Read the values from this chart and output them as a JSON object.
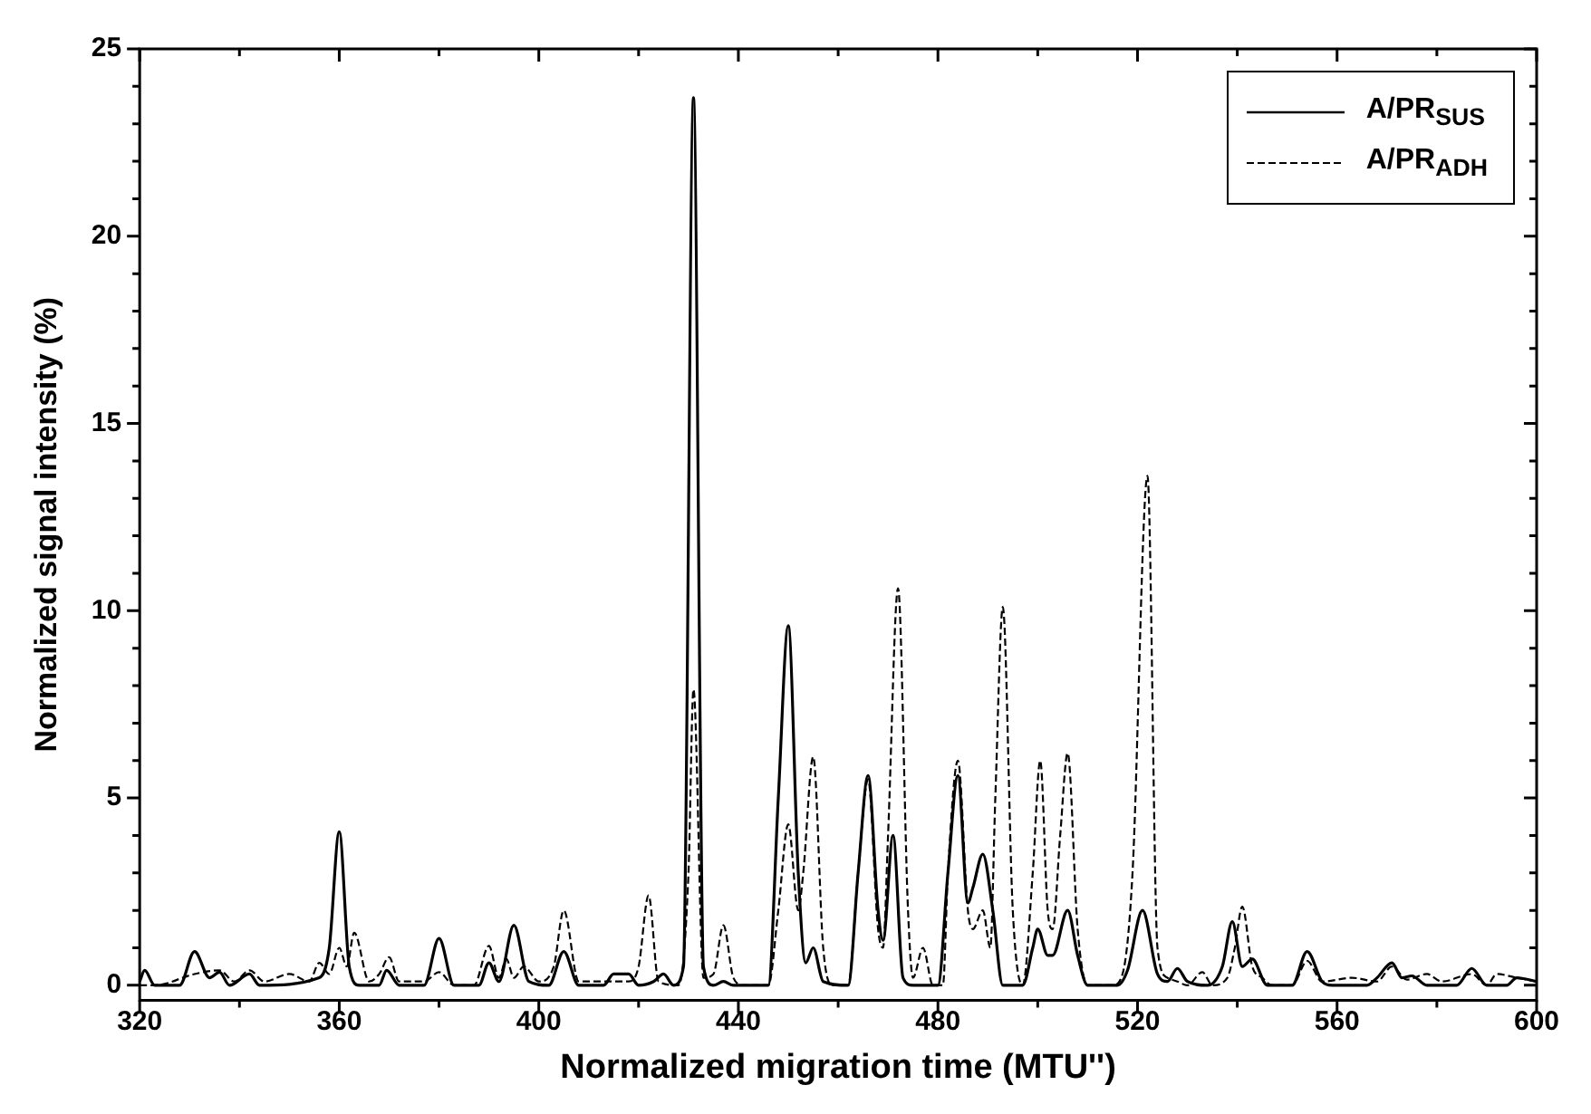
{
  "chart_data": {
    "type": "line",
    "xlabel": "Normalized migration time (MTU'')",
    "ylabel": "Normalized signal intensity (%)",
    "xlim": [
      320,
      600
    ],
    "ylim": [
      -0.4,
      25
    ],
    "xticks": [
      320,
      {
        "value": 340,
        "label": null
      },
      360,
      {
        "value": 380,
        "label": null
      },
      400,
      {
        "value": 420,
        "label": null
      },
      440,
      {
        "value": 460,
        "label": null
      },
      480,
      {
        "value": 500,
        "label": null
      },
      520,
      {
        "value": 540,
        "label": null
      },
      560,
      {
        "value": 580,
        "label": null
      },
      600
    ],
    "yticks": [
      0,
      {
        "value": 1,
        "label": null
      },
      {
        "value": 2,
        "label": null
      },
      {
        "value": 3,
        "label": null
      },
      {
        "value": 4,
        "label": null
      },
      5,
      {
        "value": 6,
        "label": null
      },
      {
        "value": 7,
        "label": null
      },
      {
        "value": 8,
        "label": null
      },
      {
        "value": 9,
        "label": null
      },
      10,
      {
        "value": 11,
        "label": null
      },
      {
        "value": 12,
        "label": null
      },
      {
        "value": 13,
        "label": null
      },
      {
        "value": 14,
        "label": null
      },
      15,
      {
        "value": 16,
        "label": null
      },
      {
        "value": 17,
        "label": null
      },
      {
        "value": 18,
        "label": null
      },
      {
        "value": 19,
        "label": null
      },
      20,
      {
        "value": 21,
        "label": null
      },
      {
        "value": 22,
        "label": null
      },
      {
        "value": 23,
        "label": null
      },
      {
        "value": 24,
        "label": null
      },
      25
    ],
    "grid": false,
    "legend": "top right",
    "marker": "none",
    "series": [
      {
        "name": "A/PR$_{SUS}$",
        "color": "#000000",
        "line_style": "solid",
        "x": [
          320,
          321,
          323,
          328,
          331,
          334,
          336,
          338,
          342,
          344,
          356,
          358,
          360,
          362,
          364,
          368,
          369.5,
          372,
          377,
          380,
          383,
          388,
          390,
          392,
          395,
          398,
          402,
          405,
          408,
          413,
          415,
          418,
          420,
          423,
          425,
          427,
          429,
          431,
          433,
          435,
          437,
          439,
          446,
          448,
          450,
          452,
          453.5,
          455,
          457,
          462,
          464,
          466,
          468,
          469,
          471,
          473,
          475,
          480,
          482,
          484,
          486,
          487,
          489,
          491,
          493,
          497,
          499,
          500,
          502,
          503,
          506,
          508,
          510,
          516,
          518,
          521,
          524,
          526,
          528,
          530,
          534,
          537,
          539,
          541,
          543,
          546,
          551,
          554,
          557,
          559,
          566,
          568,
          571,
          573,
          575,
          578,
          584,
          587,
          590,
          594,
          596,
          600
        ],
        "values": [
          0.1,
          0.4,
          0,
          0,
          0.9,
          0.2,
          0.35,
          0,
          0.3,
          0,
          0.2,
          1,
          4.1,
          0.5,
          0,
          0,
          0.4,
          0,
          0,
          1.25,
          0,
          0,
          0.6,
          0.1,
          1.6,
          0.1,
          0,
          0.9,
          0,
          0,
          0.3,
          0.3,
          0,
          0.1,
          0.3,
          0,
          0.5,
          23.7,
          0.5,
          0,
          0.1,
          0,
          0,
          5,
          9.6,
          3,
          0.6,
          1,
          0.1,
          0,
          3,
          5.6,
          2,
          1.2,
          4,
          0.2,
          0,
          0,
          3,
          5.6,
          2.2,
          2.6,
          3.5,
          2,
          0,
          0,
          1,
          1.5,
          0.8,
          0.8,
          2,
          0.8,
          0,
          0,
          0.4,
          2,
          0.3,
          0.1,
          0.45,
          0.1,
          0,
          0.5,
          1.7,
          0.5,
          0.7,
          0,
          0,
          0.9,
          0.1,
          0,
          0,
          0.2,
          0.6,
          0.2,
          0.25,
          0,
          0,
          0.45,
          0,
          0,
          0.2,
          0.1
        ]
      },
      {
        "name": "A/PR$_{ADH}$",
        "color": "#000000",
        "line_style": "dashed",
        "x": [
          320,
          323,
          331,
          336,
          339,
          342,
          345,
          350,
          354,
          356,
          358,
          360,
          361.5,
          363,
          366,
          368,
          370,
          372,
          377,
          380,
          383,
          387,
          390,
          392,
          393.5,
          395,
          397,
          400,
          403,
          405,
          408,
          414,
          418,
          420,
          422,
          424,
          428,
          430,
          431,
          433,
          435,
          437,
          439,
          441,
          446,
          448,
          450,
          452,
          453,
          455,
          457,
          459,
          462,
          464,
          466,
          468,
          469,
          470,
          472,
          474,
          475,
          477,
          479,
          481,
          482,
          484,
          486,
          487,
          489,
          490.5,
          491.5,
          493,
          495,
          497,
          499,
          500.5,
          502,
          503,
          504.5,
          506,
          508,
          510,
          515,
          517,
          519,
          522,
          524,
          526,
          528,
          530,
          533,
          535,
          538,
          539.5,
          541,
          543,
          545,
          547,
          551,
          554,
          557,
          563,
          568,
          571,
          574,
          578,
          581,
          587,
          590,
          592,
          596,
          600
        ],
        "values": [
          0,
          0,
          0.3,
          0.4,
          0.1,
          0.4,
          0.1,
          0.3,
          0.1,
          0.6,
          0.3,
          1,
          0.5,
          1.4,
          0.1,
          0.3,
          0.75,
          0.1,
          0.1,
          0.35,
          0,
          0,
          1.05,
          0.2,
          0.7,
          0.2,
          0.5,
          0.1,
          0.5,
          2,
          0.1,
          0.1,
          0.1,
          0.5,
          2.4,
          0.1,
          0,
          3,
          7.9,
          0.2,
          0.3,
          1.6,
          0.2,
          0,
          0,
          2,
          4.3,
          2,
          3,
          6.1,
          1,
          0,
          0,
          3,
          5.5,
          1.5,
          1,
          4,
          10.6,
          2,
          0.2,
          1,
          0,
          0,
          3,
          6,
          2,
          1.5,
          2,
          1,
          5,
          10.1,
          2,
          0,
          3,
          6,
          2,
          1.5,
          4,
          6.2,
          1.5,
          0,
          0,
          0.3,
          3,
          13.6,
          1,
          0.2,
          0.1,
          0,
          0.35,
          0,
          0.2,
          1,
          2.1,
          0.5,
          0.2,
          0,
          0,
          0.65,
          0.1,
          0.2,
          0.1,
          0.5,
          0.15,
          0.3,
          0.1,
          0.3,
          0,
          0.3,
          0.2,
          0.1
        ]
      }
    ]
  }
}
